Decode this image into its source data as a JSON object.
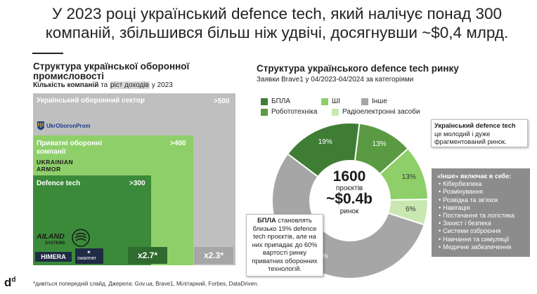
{
  "headline": {
    "line1": "У 2023 році український defence tech, який налічує понад 300",
    "line2": "компаній, збільшився більш ніж удвічі, досягнувши ~$0,4 млрд."
  },
  "left_panel": {
    "title": "Структура української оборонної промисловості",
    "subtitle_a": "Кількість компаній",
    "subtitle_b": " та ",
    "subtitle_c": "ріст доходів",
    "subtitle_d": " у 2023",
    "boxes": [
      {
        "label": "Український оборонний сектор",
        "value": ">500",
        "color": "#bfbfbf"
      },
      {
        "label": "Приватні оборонні компанії",
        "value": ">400",
        "color": "#8fcf6a"
      },
      {
        "label": "Defence tech",
        "value": ">300",
        "color": "#3b8a3a"
      }
    ],
    "logos": {
      "ukroboronprom": "UkrOboronProm",
      "ukrainian_armor_1": "UKRAINIAN",
      "ukrainian_armor_2": "ARMOR",
      "ailand": "AILAND",
      "ailand_sub": "SYSTEMS",
      "himera": "HIMERA",
      "swarmer": "swarmer"
    },
    "multipliers": {
      "defence_tech": "x2.7*",
      "sector": "x2.3*"
    }
  },
  "chart_data": {
    "type": "pie",
    "title": "Структура українського defence tech ринку",
    "subtitle": "Заявки Brave1 у 04/2023-04/2024 за категоріями",
    "categories": [
      "Інше",
      "БПЛА",
      "Робототехніка",
      "ШІ",
      "Радіоелектронні засоби"
    ],
    "values": [
      63,
      19,
      13,
      13,
      6
    ],
    "value_labels": [
      "63%",
      "19%",
      "13%",
      "13%",
      "6%"
    ],
    "colors": [
      "#a6a6a6",
      "#3f7d35",
      "#5a9a42",
      "#8fcf6a",
      "#c9e8b1"
    ],
    "legend": [
      {
        "name": "БПЛА",
        "color": "#3f7d35"
      },
      {
        "name": "ШІ",
        "color": "#8fcf6a"
      },
      {
        "name": "Інше",
        "color": "#a6a6a6"
      },
      {
        "name": "Робототехніка",
        "color": "#5a9a42"
      },
      {
        "name": "Радіоелектронні засоби",
        "color": "#c9e8b1"
      }
    ],
    "center": {
      "count": "1600",
      "count_label": "проєктів",
      "amount": "~$0.4b",
      "amount_label": "ринок"
    }
  },
  "callouts": {
    "top_bold": "Український defence tech",
    "top_rest": " це молодий і дуже фрагментований ринок.",
    "bplas_bold": "БПЛА",
    "bplas_rest": " становлять близько 19% defence tech проєктів, але на них припадає до 60% вартості ринку приватних оборонних технологій.",
    "other_title": "«Інше» включає в себе:",
    "other_items": [
      "Кібербезпека",
      "Розмінування",
      "Розвідка та зв'язок",
      "Навігація",
      "Постачання та логістика",
      "Захист і безпека",
      "Системи озброєння",
      "Навчання та симуляції",
      "Медичне забезпечення"
    ]
  },
  "footer": {
    "logo": "d",
    "logo_sup": "d",
    "note": "*дивіться попередній слайд. Джерела: Gov.ua, Brave1, Мілітарний, Forbes, DataDriven."
  }
}
